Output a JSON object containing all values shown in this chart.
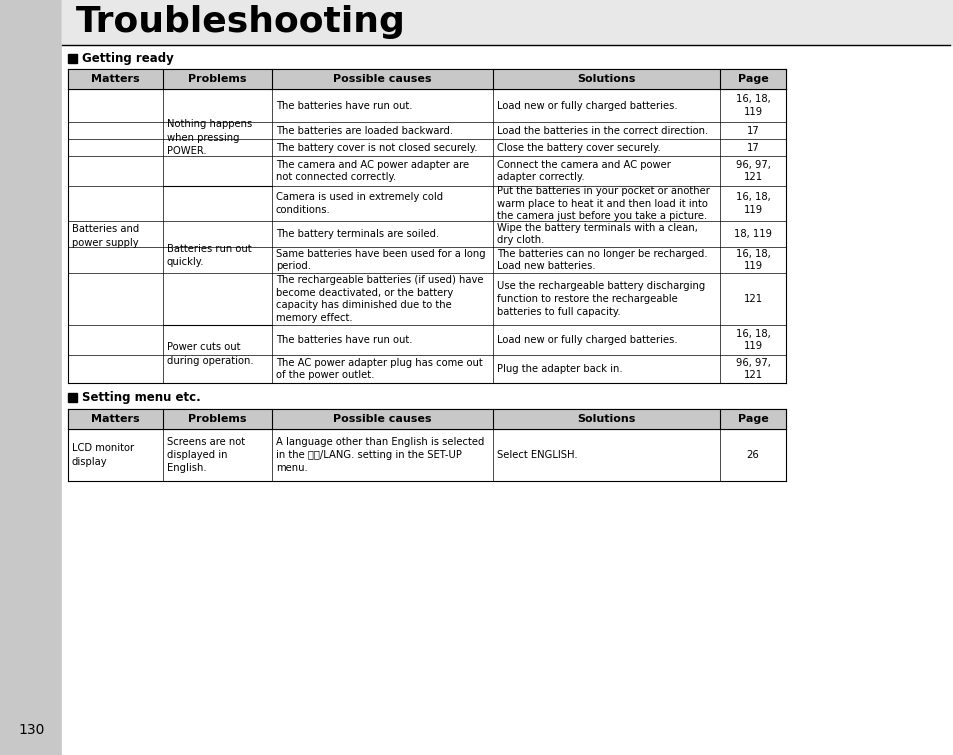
{
  "title": "Troubleshooting",
  "bg_color": "#ffffff",
  "page_bg": "#c8c8c8",
  "page_number": "130",
  "section1_label": "Getting ready",
  "section2_label": "Setting menu etc.",
  "header_cols": [
    "Matters",
    "Problems",
    "Possible causes",
    "Solutions",
    "Page"
  ],
  "causes_g1": [
    "The batteries have run out.",
    "The batteries are loaded backward.",
    "The battery cover is not closed securely.",
    "The camera and AC power adapter are\nnot connected correctly."
  ],
  "solutions_g1": [
    "Load new or fully charged batteries.",
    "Load the batteries in the correct direction.",
    "Close the battery cover securely.",
    "Connect the camera and AC power\nadapter correctly."
  ],
  "pages_g1": [
    "16, 18,\n119",
    "17",
    "17",
    "96, 97,\n121"
  ],
  "causes_g2": [
    "Camera is used in extremely cold\nconditions.",
    "The battery terminals are soiled.",
    "Same batteries have been used for a long\nperiod.",
    "The rechargeable batteries (if used) have\nbecome deactivated, or the battery\ncapacity has diminished due to the\nmemory effect."
  ],
  "solutions_g2": [
    "Put the batteries in your pocket or another\nwarm place to heat it and then load it into\nthe camera just before you take a picture.",
    "Wipe the battery terminals with a clean,\ndry cloth.",
    "The batteries can no longer be recharged.\nLoad new batteries.",
    "Use the rechargeable battery discharging\nfunction to restore the rechargeable\nbatteries to full capacity."
  ],
  "pages_g2": [
    "16, 18,\n119",
    "18, 119",
    "16, 18,\n119",
    "121"
  ],
  "causes_g3": [
    "The batteries have run out.",
    "The AC power adapter plug has come out\nof the power outlet."
  ],
  "solutions_g3": [
    "Load new or fully charged batteries.",
    "Plug the adapter back in."
  ],
  "pages_g3": [
    "16, 18,\n119",
    "96, 97,\n121"
  ],
  "t2_matters": "LCD monitor\ndisplay",
  "t2_problems": "Screens are not\ndisplayed in\nEnglish.",
  "t2_causes": "A language other than English is selected\nin the 言語/LANG. setting in the SET-UP\nmenu.",
  "t2_solutions": "Select ENGLISH.",
  "t2_page": "26"
}
